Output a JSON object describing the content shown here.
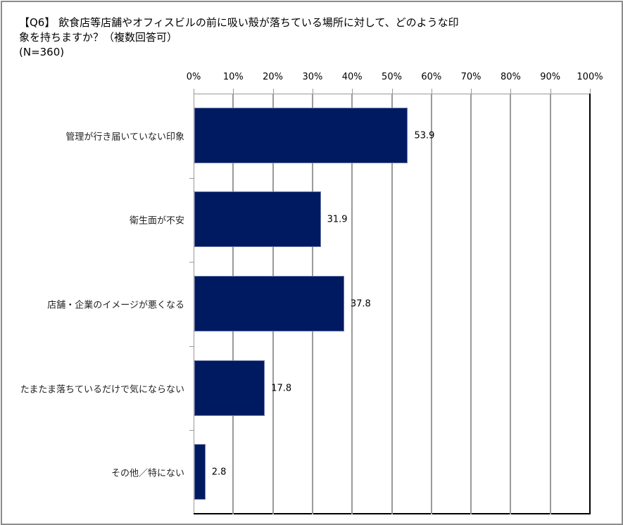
{
  "title": {
    "line1": "【Q6】 飲食店等店舗やオフィスビルの前に吸い殻が落ちている場所に対して、どのような印",
    "line2": "象を持ちますか？（複数回答可）",
    "line3": "(N=360)"
  },
  "colors": {
    "bar": "#001a61",
    "grid": "#9a9a9a",
    "axis": "#000000"
  },
  "axis": {
    "ticks": [
      "0%",
      "10%",
      "20%",
      "30%",
      "40%",
      "50%",
      "60%",
      "70%",
      "80%",
      "90%",
      "100%"
    ]
  },
  "bars": [
    {
      "label": "管理が行き届いていない印象",
      "value": "53.9"
    },
    {
      "label": "衛生面が不安",
      "value": "31.9"
    },
    {
      "label": "店舗・企業のイメージが悪くなる",
      "value": "37.8"
    },
    {
      "label": "たまたま落ちているだけで気にならない",
      "value": "17.8"
    },
    {
      "label": "その他／特にない",
      "value": "2.8"
    }
  ],
  "chart_data": {
    "type": "bar",
    "orientation": "horizontal",
    "title": "【Q6】 飲食店等店舗やオフィスビルの前に吸い殻が落ちている場所に対して、どのような印象を持ちますか？（複数回答可） (N=360)",
    "categories": [
      "管理が行き届いていない印象",
      "衛生面が不安",
      "店舗・企業のイメージが悪くなる",
      "たまたま落ちているだけで気にならない",
      "その他／特にない"
    ],
    "values": [
      53.9,
      31.9,
      37.8,
      17.8,
      2.8
    ],
    "xlabel": "",
    "ylabel": "",
    "xlim": [
      0,
      100
    ],
    "tick_labels": [
      "0%",
      "10%",
      "20%",
      "30%",
      "40%",
      "50%",
      "60%",
      "70%",
      "80%",
      "90%",
      "100%"
    ],
    "axis_position": "top",
    "grid": true,
    "legend": "none",
    "data_labels": true
  }
}
